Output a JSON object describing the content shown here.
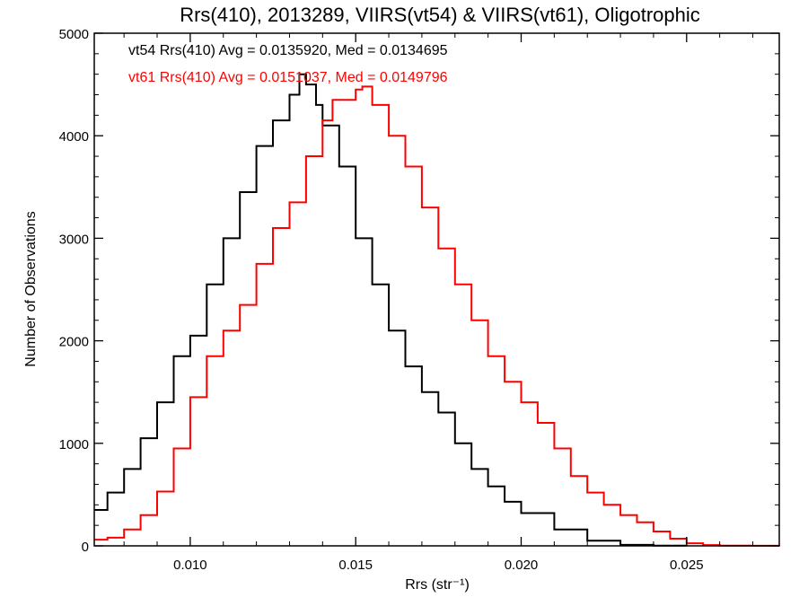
{
  "chart_data": {
    "type": "line",
    "title": "Rrs(410), 2013289, VIIRS(vt54) & VIIRS(vt61), Oligotrophic",
    "xlabel": "Rrs (str⁻¹)",
    "ylabel": "Number of Observations",
    "xlim": [
      0.0071,
      0.0278
    ],
    "ylim": [
      0,
      5000
    ],
    "x_ticks": [
      0.01,
      0.015,
      0.02,
      0.025
    ],
    "x_tick_labels": [
      "0.010",
      "0.015",
      "0.020",
      "0.025"
    ],
    "y_ticks": [
      0,
      1000,
      2000,
      3000,
      4000,
      5000
    ],
    "y_tick_labels": [
      "0",
      "1000",
      "2000",
      "3000",
      "4000",
      "5000"
    ],
    "grid": false,
    "legend": "top-left",
    "series": [
      {
        "name": "vt54",
        "color": "#000000",
        "annotation": "vt54 Rrs(410) Avg = 0.0135920, Med = 0.0134695",
        "x": [
          0.0071,
          0.0075,
          0.008,
          0.0085,
          0.009,
          0.0095,
          0.01,
          0.0105,
          0.011,
          0.0115,
          0.012,
          0.0125,
          0.013,
          0.0133,
          0.0135,
          0.0138,
          0.014,
          0.0145,
          0.015,
          0.0155,
          0.016,
          0.0165,
          0.017,
          0.0175,
          0.018,
          0.0185,
          0.019,
          0.0195,
          0.02,
          0.021,
          0.022,
          0.023,
          0.024,
          0.025
        ],
        "y": [
          350,
          520,
          750,
          1050,
          1400,
          1850,
          2050,
          2550,
          3000,
          3450,
          3900,
          4150,
          4400,
          4600,
          4500,
          4300,
          4100,
          3700,
          3000,
          2550,
          2100,
          1750,
          1500,
          1300,
          1000,
          750,
          580,
          430,
          320,
          160,
          50,
          10,
          2,
          0
        ]
      },
      {
        "name": "vt61",
        "color": "#ff0000",
        "annotation": "vt61 Rrs(410) Avg = 0.0151037, Med = 0.0149796",
        "x": [
          0.0071,
          0.0075,
          0.008,
          0.0085,
          0.009,
          0.0095,
          0.01,
          0.0105,
          0.011,
          0.0115,
          0.012,
          0.0125,
          0.013,
          0.0135,
          0.014,
          0.0143,
          0.0145,
          0.015,
          0.0152,
          0.0155,
          0.016,
          0.0165,
          0.017,
          0.0175,
          0.018,
          0.0185,
          0.019,
          0.0195,
          0.02,
          0.0205,
          0.021,
          0.0215,
          0.022,
          0.0225,
          0.023,
          0.0235,
          0.024,
          0.0245,
          0.025,
          0.0255,
          0.026,
          0.027,
          0.0278
        ],
        "y": [
          60,
          80,
          160,
          300,
          530,
          950,
          1450,
          1850,
          2100,
          2350,
          2750,
          3100,
          3350,
          3800,
          4150,
          4350,
          4350,
          4450,
          4480,
          4300,
          4000,
          3700,
          3300,
          2900,
          2550,
          2200,
          1850,
          1600,
          1400,
          1200,
          950,
          680,
          520,
          400,
          300,
          230,
          140,
          70,
          25,
          8,
          3,
          1,
          0
        ]
      }
    ]
  }
}
